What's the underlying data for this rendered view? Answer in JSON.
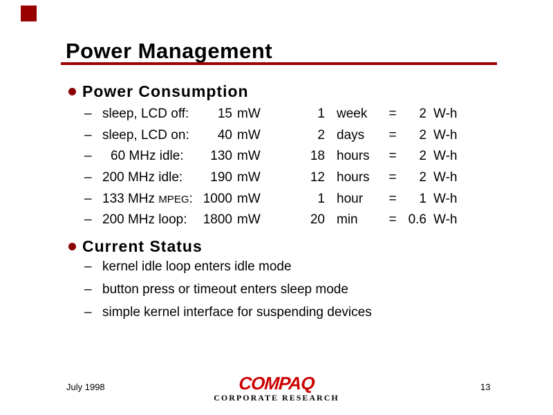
{
  "slide": {
    "title": "Power Management"
  },
  "colors": {
    "accent_dark_red": "#990000",
    "bullet_red": "#8B0000",
    "logo_red": "#CC0000",
    "text": "#000000",
    "background": "#FFFFFF"
  },
  "markers": {
    "section_bullet": "round-red-dot",
    "item_dash": "–"
  },
  "power_consumption": {
    "heading": "Power Consumption",
    "rows": [
      {
        "label_pre": "sleep, LCD off:",
        "label_small": "",
        "label_post": "",
        "power_value": "15",
        "power_unit": "mW",
        "duration_value": "1",
        "duration_unit": "week",
        "equals": "=",
        "energy_value": "2",
        "energy_unit": "W-h"
      },
      {
        "label_pre": "sleep, LCD on:",
        "label_small": "",
        "label_post": "",
        "power_value": "40",
        "power_unit": "mW",
        "duration_value": "2",
        "duration_unit": "days",
        "equals": "=",
        "energy_value": "2",
        "energy_unit": "W-h"
      },
      {
        "label_pre": "60 MHz idle:",
        "label_small": "",
        "label_post": "",
        "power_value": "130",
        "power_unit": "mW",
        "duration_value": "18",
        "duration_unit": "hours",
        "equals": "=",
        "energy_value": "2",
        "energy_unit": "W-h"
      },
      {
        "label_pre": "200 MHz idle:",
        "label_small": "",
        "label_post": "",
        "power_value": "190",
        "power_unit": "mW",
        "duration_value": "12",
        "duration_unit": "hours",
        "equals": "=",
        "energy_value": "2",
        "energy_unit": "W-h"
      },
      {
        "label_pre": "133 MHz ",
        "label_small": "MPEG",
        "label_post": ":",
        "power_value": "1000",
        "power_unit": "mW",
        "duration_value": "1",
        "duration_unit": "hour",
        "equals": "=",
        "energy_value": "1",
        "energy_unit": "W-h"
      },
      {
        "label_pre": "200 MHz loop:",
        "label_small": "",
        "label_post": "",
        "power_value": "1800",
        "power_unit": "mW",
        "duration_value": "20",
        "duration_unit": "min",
        "equals": "=",
        "energy_value": "0.6",
        "energy_unit": "W-h"
      }
    ]
  },
  "current_status": {
    "heading": "Current Status",
    "items": [
      "kernel idle loop enters idle mode",
      "button press or timeout enters sleep mode",
      "simple kernel interface for suspending devices"
    ]
  },
  "footer": {
    "date": "July 1998",
    "logo_text": "COMPAQ",
    "logo_subtext": "CORPORATE RESEARCH",
    "page_number": "13"
  }
}
